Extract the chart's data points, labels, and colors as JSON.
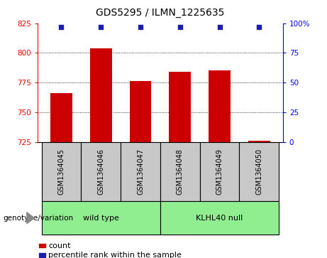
{
  "title": "GDS5295 / ILMN_1225635",
  "samples": [
    "GSM1364045",
    "GSM1364046",
    "GSM1364047",
    "GSM1364048",
    "GSM1364049",
    "GSM1364050"
  ],
  "count_values": [
    766,
    804,
    776,
    784,
    785,
    726
  ],
  "percentile_values": [
    97,
    97,
    97,
    97,
    97,
    97
  ],
  "groups": [
    {
      "label": "wild type",
      "indices": [
        0,
        1,
        2
      ],
      "color": "#90EE90"
    },
    {
      "label": "KLHL40 null",
      "indices": [
        3,
        4,
        5
      ],
      "color": "#90EE90"
    }
  ],
  "bar_color": "#CC0000",
  "dot_color": "#1C1CB0",
  "ymin": 725,
  "ymax": 825,
  "yticks_left": [
    725,
    750,
    775,
    800,
    825
  ],
  "yticks_right": [
    0,
    25,
    50,
    75,
    100
  ],
  "grid_values": [
    750,
    775,
    800
  ],
  "bar_width": 0.55,
  "legend_count_label": "count",
  "legend_pct_label": "percentile rank within the sample",
  "genotype_label": "genotype/variation",
  "sample_box_color": "#C8C8C8",
  "title_fontsize": 10,
  "tick_fontsize": 7.5,
  "sample_fontsize": 7,
  "group_fontsize": 8,
  "legend_fontsize": 8
}
